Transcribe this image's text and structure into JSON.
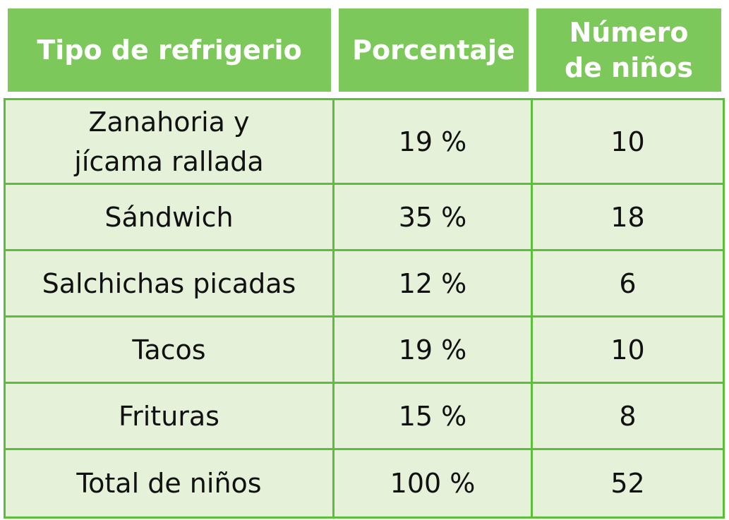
{
  "table": {
    "headers": [
      "Tipo de refrigerio",
      "Porcentaje",
      "Número de niños"
    ],
    "rows": [
      [
        "Zanahoria y jícama rallada",
        "19 %",
        "10"
      ],
      [
        "Sándwich",
        "35 %",
        "18"
      ],
      [
        "Salchichas picadas",
        "12 %",
        "6"
      ],
      [
        "Tacos",
        "19 %",
        "10"
      ],
      [
        "Frituras",
        "15 %",
        "8"
      ],
      [
        "Total de niños",
        "100 %",
        "52"
      ]
    ]
  },
  "colors": {
    "header_bg": "#7dc85a",
    "header_text": "#ffffff",
    "body_bg": "#e5f1d9",
    "border": "#5cbf3a"
  }
}
